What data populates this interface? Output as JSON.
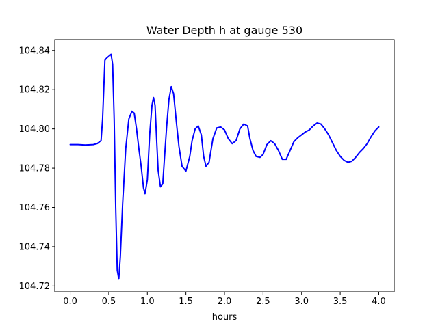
{
  "chart_data": {
    "type": "line",
    "title": "Water Depth h at gauge 530",
    "xlabel": "hours",
    "ylabel": "",
    "xlim": [
      -0.2,
      4.2
    ],
    "ylim": [
      104.717,
      104.8455
    ],
    "x_ticks": [
      "0.0",
      "0.5",
      "1.0",
      "1.5",
      "2.0",
      "2.5",
      "3.0",
      "3.5",
      "4.0"
    ],
    "y_ticks": [
      "104.72",
      "104.74",
      "104.76",
      "104.78",
      "104.80",
      "104.82",
      "104.84"
    ],
    "grid": false,
    "legend": "none",
    "line_color": "#0000ff",
    "series": [
      {
        "x": [
          0.0,
          0.1,
          0.2,
          0.3,
          0.35,
          0.4,
          0.42,
          0.45,
          0.47,
          0.5,
          0.53,
          0.55,
          0.57,
          0.59,
          0.61,
          0.63,
          0.65,
          0.68,
          0.72,
          0.76,
          0.8,
          0.83,
          0.86,
          0.89,
          0.92,
          0.95,
          0.97,
          1.0,
          1.03,
          1.06,
          1.08,
          1.1,
          1.12,
          1.14,
          1.17,
          1.2,
          1.22,
          1.25,
          1.28,
          1.31,
          1.34,
          1.36,
          1.38,
          1.41,
          1.45,
          1.5,
          1.55,
          1.58,
          1.62,
          1.66,
          1.7,
          1.73,
          1.76,
          1.8,
          1.85,
          1.9,
          1.95,
          2.0,
          2.05,
          2.1,
          2.15,
          2.2,
          2.25,
          2.3,
          2.33,
          2.37,
          2.41,
          2.46,
          2.5,
          2.55,
          2.6,
          2.65,
          2.7,
          2.75,
          2.8,
          2.85,
          2.9,
          2.95,
          3.0,
          3.05,
          3.1,
          3.15,
          3.2,
          3.25,
          3.3,
          3.35,
          3.4,
          3.45,
          3.5,
          3.55,
          3.6,
          3.65,
          3.7,
          3.75,
          3.8,
          3.85,
          3.9,
          3.95,
          4.0
        ],
        "y": [
          104.792,
          104.792,
          104.7918,
          104.792,
          104.7925,
          104.794,
          104.805,
          104.835,
          104.836,
          104.837,
          104.838,
          104.833,
          104.805,
          104.76,
          104.728,
          104.7235,
          104.735,
          104.762,
          104.79,
          104.805,
          104.809,
          104.808,
          104.8,
          104.79,
          104.781,
          104.77,
          104.767,
          104.774,
          104.797,
          104.812,
          104.816,
          104.812,
          104.795,
          104.779,
          104.7705,
          104.772,
          104.784,
          104.801,
          104.815,
          104.8215,
          104.818,
          104.81,
          104.802,
          104.791,
          104.781,
          104.7785,
          104.786,
          104.794,
          104.8,
          104.8015,
          104.797,
          104.786,
          104.781,
          104.783,
          104.795,
          104.8005,
          104.801,
          104.7995,
          104.795,
          104.7925,
          104.794,
          104.8,
          104.8025,
          104.8015,
          104.795,
          104.789,
          104.786,
          104.7855,
          104.787,
          104.792,
          104.794,
          104.7925,
          104.789,
          104.7845,
          104.7845,
          104.789,
          104.7935,
          104.7955,
          104.797,
          104.7985,
          104.7995,
          104.8015,
          104.803,
          104.8025,
          104.8,
          104.797,
          104.793,
          104.789,
          104.786,
          104.784,
          104.783,
          104.7835,
          104.7855,
          104.788,
          104.79,
          104.7925,
          104.796,
          104.799,
          104.801
        ]
      }
    ]
  }
}
